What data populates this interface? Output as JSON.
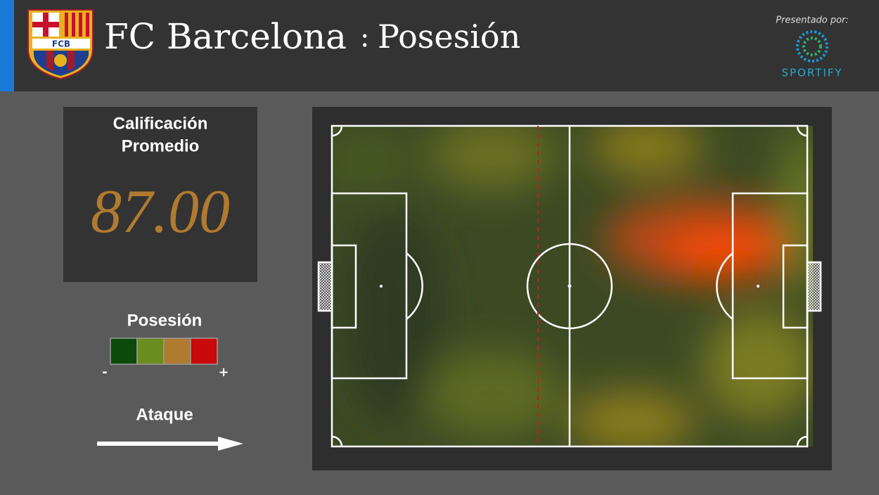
{
  "header": {
    "crest_text": "FCB",
    "team": "FC Barcelona",
    "separator": ":",
    "metric": "Posesión",
    "sponsor_caption": "Presentado por:",
    "sponsor_name": "SPORTIFY"
  },
  "rating": {
    "title_lines": [
      "Calificación",
      "Promedio"
    ],
    "value": "87.00"
  },
  "legend": {
    "title": "Posesión",
    "colors": [
      "#0b4a0b",
      "#6b8c1e",
      "#b07a30",
      "#c80a0a"
    ],
    "min_label": "-",
    "max_label": "+"
  },
  "direction": {
    "label": "Ataque"
  }
}
